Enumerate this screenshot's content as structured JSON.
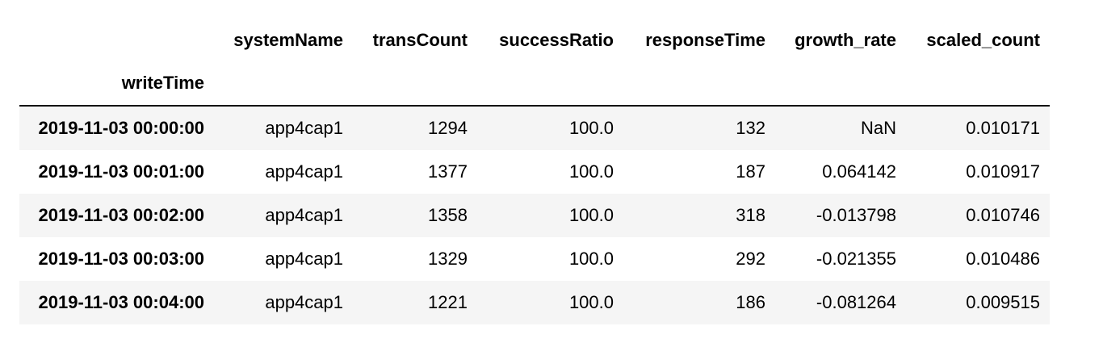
{
  "table": {
    "index_name": "writeTime",
    "columns": [
      "systemName",
      "transCount",
      "successRatio",
      "responseTime",
      "growth_rate",
      "scaled_count"
    ],
    "rows": [
      {
        "index": "2019-11-03 00:00:00",
        "cells": [
          "app4cap1",
          "1294",
          "100.0",
          "132",
          "NaN",
          "0.010171"
        ]
      },
      {
        "index": "2019-11-03 00:01:00",
        "cells": [
          "app4cap1",
          "1377",
          "100.0",
          "187",
          "0.064142",
          "0.010917"
        ]
      },
      {
        "index": "2019-11-03 00:02:00",
        "cells": [
          "app4cap1",
          "1358",
          "100.0",
          "318",
          "-0.013798",
          "0.010746"
        ]
      },
      {
        "index": "2019-11-03 00:03:00",
        "cells": [
          "app4cap1",
          "1329",
          "100.0",
          "292",
          "-0.021355",
          "0.010486"
        ]
      },
      {
        "index": "2019-11-03 00:04:00",
        "cells": [
          "app4cap1",
          "1221",
          "100.0",
          "186",
          "-0.081264",
          "0.009515"
        ]
      }
    ]
  }
}
